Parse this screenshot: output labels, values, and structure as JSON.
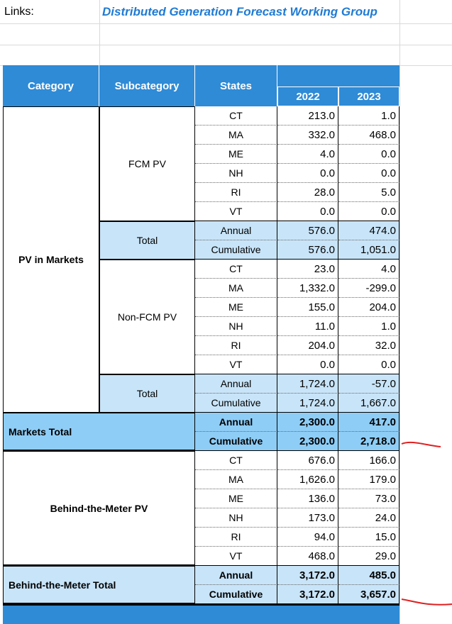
{
  "links_label": "Links:",
  "links_text": "Distributed Generation Forecast Working Group",
  "table": {
    "headers": [
      "Category",
      "Subcategory",
      "States"
    ],
    "years": [
      "2022",
      "2023"
    ],
    "sections": [
      {
        "category": "PV in Markets",
        "groups": [
          {
            "subcategory": "FCM PV",
            "rows": [
              {
                "label": "CT",
                "values": [
                  "213.0",
                  "1.0"
                ]
              },
              {
                "label": "MA",
                "values": [
                  "332.0",
                  "468.0"
                ]
              },
              {
                "label": "ME",
                "values": [
                  "4.0",
                  "0.0"
                ]
              },
              {
                "label": "NH",
                "values": [
                  "0.0",
                  "0.0"
                ]
              },
              {
                "label": "RI",
                "values": [
                  "28.0",
                  "5.0"
                ]
              },
              {
                "label": "VT",
                "values": [
                  "0.0",
                  "0.0"
                ]
              }
            ]
          },
          {
            "subcategory": "Total",
            "fill": "#c8e4f8",
            "rows": [
              {
                "label": "Annual",
                "values": [
                  "576.0",
                  "474.0"
                ]
              },
              {
                "label": "Cumulative",
                "values": [
                  "576.0",
                  "1,051.0"
                ]
              }
            ]
          },
          {
            "subcategory": "Non-FCM PV",
            "rows": [
              {
                "label": "CT",
                "values": [
                  "23.0",
                  "4.0"
                ]
              },
              {
                "label": "MA",
                "values": [
                  "1,332.0",
                  "-299.0"
                ]
              },
              {
                "label": "ME",
                "values": [
                  "155.0",
                  "204.0"
                ]
              },
              {
                "label": "NH",
                "values": [
                  "11.0",
                  "1.0"
                ]
              },
              {
                "label": "RI",
                "values": [
                  "204.0",
                  "32.0"
                ]
              },
              {
                "label": "VT",
                "values": [
                  "0.0",
                  "0.0"
                ]
              }
            ]
          },
          {
            "subcategory": "Total",
            "fill": "#c8e4f8",
            "rows": [
              {
                "label": "Annual",
                "values": [
                  "1,724.0",
                  "-57.0"
                ]
              },
              {
                "label": "Cumulative",
                "values": [
                  "1,724.0",
                  "1,667.0"
                ]
              }
            ]
          }
        ]
      },
      {
        "category": "Markets Total",
        "fill": "#8ecdf6",
        "rows": [
          {
            "label": "Annual",
            "values": [
              "2,300.0",
              "417.0"
            ]
          },
          {
            "label": "Cumulative",
            "values": [
              "2,300.0",
              "2,718.0"
            ]
          }
        ]
      },
      {
        "category": "Behind-the-Meter PV",
        "rows": [
          {
            "label": "CT",
            "values": [
              "676.0",
              "166.0"
            ]
          },
          {
            "label": "MA",
            "values": [
              "1,626.0",
              "179.0"
            ]
          },
          {
            "label": "ME",
            "values": [
              "136.0",
              "73.0"
            ]
          },
          {
            "label": "NH",
            "values": [
              "173.0",
              "24.0"
            ]
          },
          {
            "label": "RI",
            "values": [
              "94.0",
              "15.0"
            ]
          },
          {
            "label": "VT",
            "values": [
              "468.0",
              "29.0"
            ]
          }
        ]
      },
      {
        "category": "Behind-the-Meter Total",
        "fill": "#c8e4f8",
        "rows": [
          {
            "label": "Annual",
            "values": [
              "3,172.0",
              "485.0"
            ]
          },
          {
            "label": "Cumulative",
            "values": [
              "3,172.0",
              "3,657.0"
            ]
          }
        ]
      }
    ]
  }
}
